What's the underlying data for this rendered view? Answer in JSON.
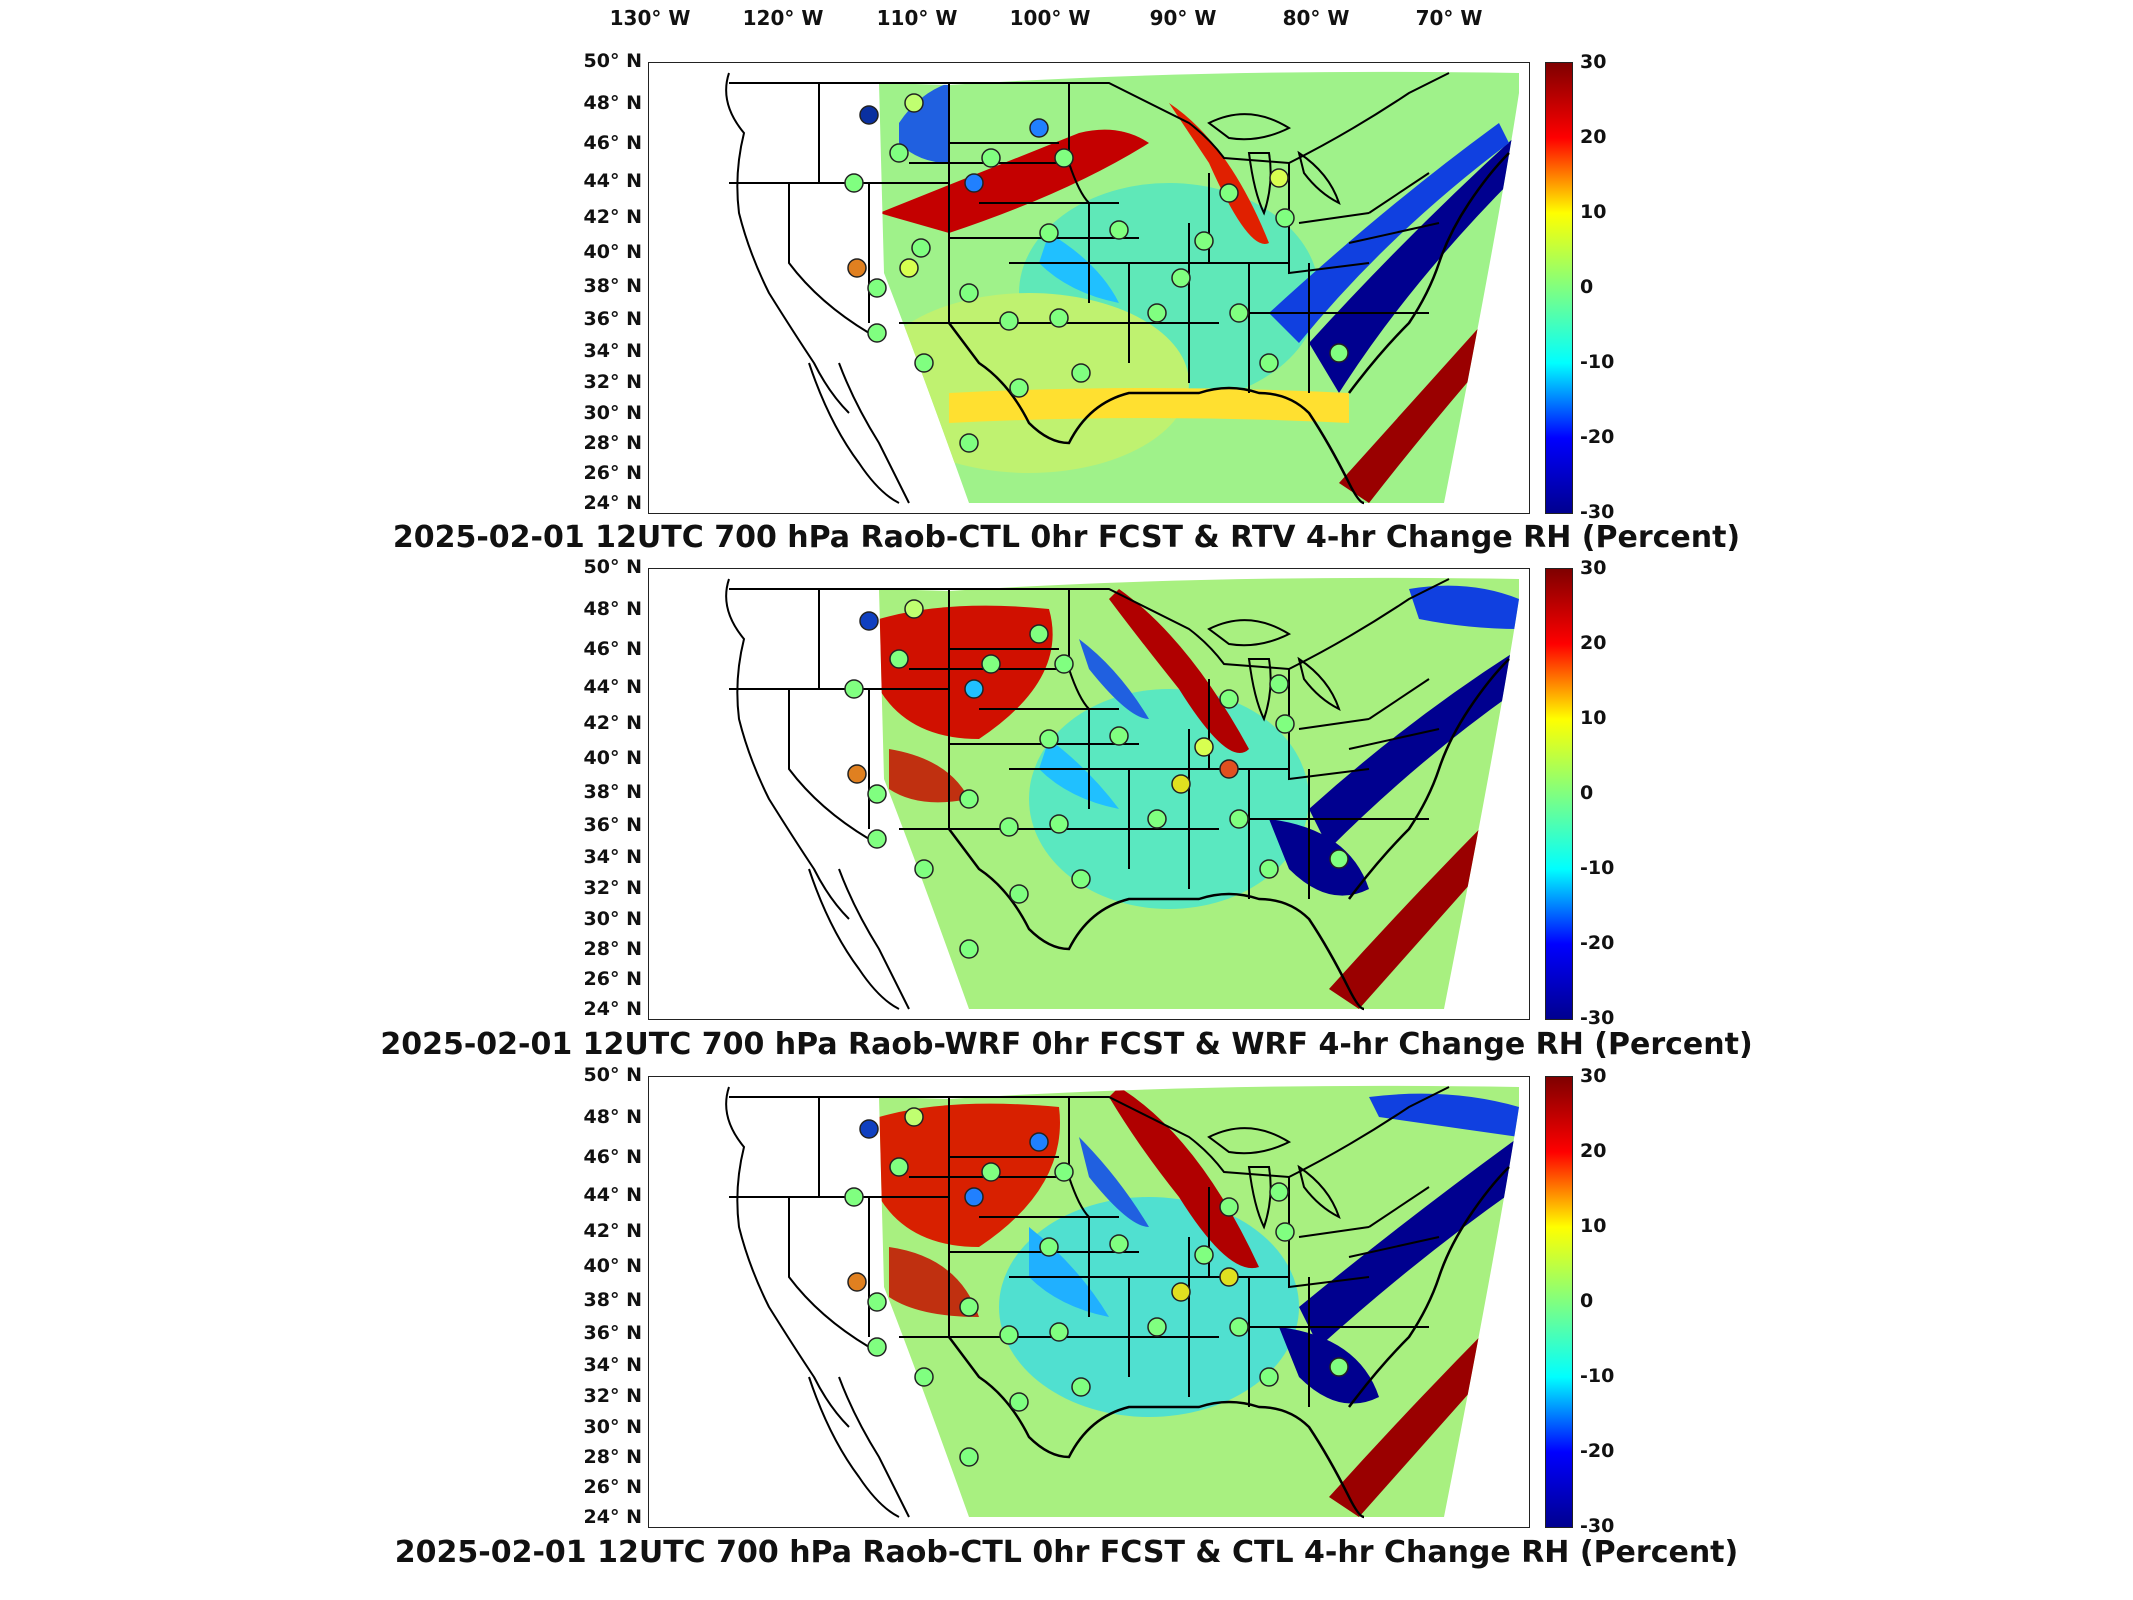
{
  "longitude_labels": [
    "130° W",
    "120° W",
    "110° W",
    "100° W",
    "90° W",
    "80° W",
    "70° W"
  ],
  "latitude_labels": [
    "50° N",
    "48° N",
    "46° N",
    "44° N",
    "42° N",
    "40° N",
    "38° N",
    "36° N",
    "34° N",
    "32° N",
    "30° N",
    "28° N",
    "26° N",
    "24° N"
  ],
  "colorbar": {
    "ticks": [
      "30",
      "20",
      "10",
      "0",
      "-10",
      "-20",
      "-30"
    ],
    "colormap": [
      "#7f0000",
      "#ff0000",
      "#ffff00",
      "#80ff80",
      "#00ffff",
      "#0000ff",
      "#00008f"
    ]
  },
  "panels": [
    {
      "title": "2025-02-01 12UTC 700 hPa Raob-CTL 0hr FCST & RTV 4-hr Change RH (Percent)"
    },
    {
      "title": "2025-02-01 12UTC 700 hPa Raob-WRF 0hr FCST & WRF 4-hr Change RH (Percent)"
    },
    {
      "title": "2025-02-01 12UTC 700 hPa Raob-CTL 0hr FCST & CTL 4-hr Change RH (Percent)"
    }
  ]
}
